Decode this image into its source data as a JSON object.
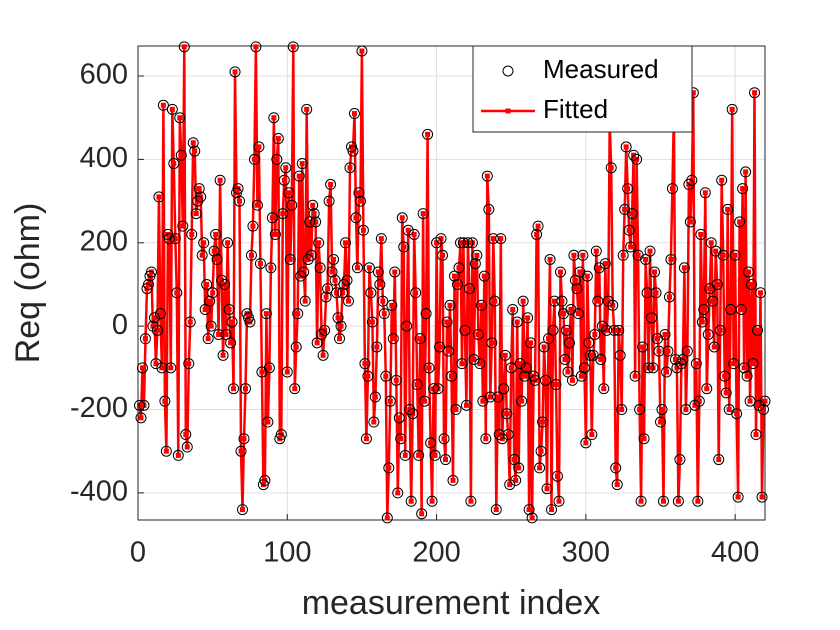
{
  "chart_data": {
    "type": "line",
    "x_label": "measurement index",
    "y_label": "Req (ohm)",
    "xlim": [
      0,
      420
    ],
    "ylim": [
      -465,
      672
    ],
    "xticks": [
      0,
      100,
      200,
      300,
      400
    ],
    "yticks": [
      -400,
      -200,
      0,
      200,
      400,
      600
    ],
    "grid": true,
    "legend": "northeast",
    "x": [
      1,
      2,
      3,
      4,
      5,
      6,
      7,
      8,
      9,
      10,
      11,
      12,
      13,
      14,
      15,
      16,
      17,
      18,
      19,
      20,
      21,
      22,
      23,
      24,
      25,
      26,
      27,
      28,
      29,
      30,
      31,
      32,
      33,
      34,
      35,
      36,
      37,
      38,
      39,
      40,
      41,
      42,
      43,
      44,
      45,
      46,
      47,
      48,
      49,
      50,
      51,
      52,
      53,
      54,
      55,
      56,
      57,
      58,
      59,
      60,
      61,
      62,
      63,
      64,
      65,
      66,
      67,
      68,
      69,
      70,
      71,
      72,
      73,
      74,
      75,
      76,
      77,
      78,
      79,
      80,
      81,
      82,
      83,
      84,
      85,
      86,
      87,
      88,
      89,
      90,
      91,
      92,
      93,
      94,
      95,
      96,
      97,
      98,
      99,
      100,
      101,
      102,
      103,
      104,
      105,
      106,
      107,
      108,
      109,
      110,
      111,
      112,
      113,
      114,
      115,
      116,
      117,
      118,
      119,
      120,
      121,
      122,
      123,
      124,
      125,
      126,
      127,
      128,
      129,
      130,
      131,
      132,
      133,
      134,
      135,
      136,
      137,
      138,
      139,
      140,
      141,
      142,
      143,
      144,
      145,
      146,
      147,
      148,
      149,
      150,
      151,
      152,
      153,
      154,
      155,
      156,
      157,
      158,
      159,
      160,
      161,
      162,
      163,
      164,
      165,
      166,
      167,
      168,
      169,
      170,
      171,
      172,
      173,
      174,
      175,
      176,
      177,
      178,
      179,
      180,
      181,
      182,
      183,
      184,
      185,
      186,
      187,
      188,
      189,
      190,
      191,
      192,
      193,
      194,
      195,
      196,
      197,
      198,
      199,
      200,
      201,
      202,
      203,
      204,
      205,
      206,
      207,
      208,
      209,
      210,
      211,
      212,
      213,
      214,
      215,
      216,
      217,
      218,
      219,
      220,
      221,
      222,
      223,
      224,
      225,
      226,
      227,
      228,
      229,
      230,
      231,
      232,
      233,
      234,
      235,
      236,
      237,
      238,
      239,
      240,
      241,
      242,
      243,
      244,
      245,
      246,
      247,
      248,
      249,
      250,
      251,
      252,
      253,
      254,
      255,
      256,
      257,
      258,
      259,
      260,
      261,
      262,
      263,
      264,
      265,
      266,
      267,
      268,
      269,
      270,
      271,
      272,
      273,
      274,
      275,
      276,
      277,
      278,
      279,
      280,
      281,
      282,
      283,
      284,
      285,
      286,
      287,
      288,
      289,
      290,
      291,
      292,
      293,
      294,
      295,
      296,
      297,
      298,
      299,
      300,
      301,
      302,
      303,
      304,
      305,
      306,
      307,
      308,
      309,
      310,
      311,
      312,
      313,
      314,
      315,
      316,
      317,
      318,
      319,
      320,
      321,
      322,
      323,
      324,
      325,
      326,
      327,
      328,
      329,
      330,
      331,
      332,
      333,
      334,
      335,
      336,
      337,
      338,
      339,
      340,
      341,
      342,
      343,
      344,
      345,
      346,
      347,
      348,
      349,
      350,
      351,
      352,
      353,
      354,
      355,
      356,
      357,
      358,
      359,
      360,
      361,
      362,
      363,
      364,
      365,
      366,
      367,
      368,
      369,
      370,
      371,
      372,
      373,
      374,
      375,
      376,
      377,
      378,
      379,
      380,
      381,
      382,
      383,
      384,
      385,
      386,
      387,
      388,
      389,
      390,
      391,
      392,
      393,
      394,
      395,
      396,
      397,
      398,
      399,
      400,
      401,
      402,
      403,
      404,
      405,
      406,
      407,
      408,
      409,
      410,
      411,
      412,
      413,
      414,
      415,
      416,
      417,
      418,
      419,
      420
    ],
    "series": [
      {
        "name": "Measured",
        "color": "#000000",
        "marker": "circle",
        "line": false,
        "values": [
          -190,
          -220,
          -100,
          -190,
          -30,
          90,
          100,
          120,
          130,
          0,
          20,
          -90,
          -10,
          310,
          30,
          -100,
          530,
          -180,
          -300,
          220,
          210,
          -100,
          520,
          390,
          210,
          80,
          -310,
          500,
          410,
          240,
          670,
          -260,
          -290,
          -90,
          10,
          220,
          440,
          420,
          270,
          300,
          330,
          310,
          170,
          200,
          40,
          100,
          -30,
          60,
          0,
          80,
          180,
          220,
          160,
          -20,
          350,
          110,
          -70,
          100,
          -20,
          200,
          40,
          -40,
          10,
          -150,
          610,
          320,
          330,
          300,
          -300,
          -440,
          -270,
          -150,
          30,
          20,
          10,
          170,
          240,
          400,
          670,
          290,
          430,
          150,
          -110,
          -380,
          -370,
          30,
          -230,
          -100,
          140,
          260,
          500,
          220,
          400,
          450,
          -270,
          -260,
          270,
          350,
          380,
          -110,
          320,
          160,
          290,
          670,
          -150,
          -50,
          30,
          360,
          120,
          390,
          130,
          60,
          520,
          160,
          250,
          170,
          290,
          270,
          250,
          -40,
          200,
          140,
          -20,
          -70,
          -10,
          70,
          90,
          300,
          340,
          130,
          160,
          110,
          80,
          20,
          -30,
          0,
          80,
          100,
          200,
          110,
          60,
          380,
          430,
          420,
          510,
          260,
          140,
          320,
          300,
          660,
          230,
          -90,
          -270,
          -120,
          140,
          80,
          10,
          -230,
          -170,
          -50,
          130,
          100,
          210,
          60,
          30,
          -120,
          -460,
          -340,
          -180,
          50,
          -30,
          130,
          -130,
          -400,
          -220,
          -270,
          260,
          190,
          -310,
          0,
          230,
          -200,
          -420,
          -210,
          220,
          80,
          -140,
          -310,
          -30,
          -450,
          270,
          -180,
          30,
          460,
          -100,
          -280,
          -420,
          -150,
          -310,
          200,
          -150,
          -50,
          210,
          170,
          -270,
          -320,
          10,
          -60,
          50,
          -120,
          -370,
          120,
          -200,
          100,
          140,
          200,
          -90,
          200,
          -10,
          -190,
          200,
          90,
          -420,
          200,
          -80,
          150,
          170,
          -20,
          -90,
          50,
          -180,
          120,
          -270,
          360,
          280,
          -170,
          -40,
          210,
          60,
          -440,
          -170,
          -260,
          210,
          -270,
          -150,
          -70,
          -210,
          -260,
          -380,
          -100,
          40,
          -320,
          -370,
          10,
          -340,
          -90,
          -180,
          60,
          -120,
          -100,
          20,
          -440,
          -40,
          -460,
          -120,
          -130,
          220,
          240,
          -340,
          -300,
          -230,
          -50,
          -130,
          -390,
          -30,
          160,
          -440,
          -10,
          60,
          -140,
          -360,
          -420,
          130,
          60,
          30,
          -80,
          -10,
          -110,
          -40,
          40,
          -130,
          170,
          110,
          90,
          30,
          130,
          -120,
          170,
          -100,
          -280,
          120,
          -40,
          -70,
          -260,
          -70,
          -20,
          180,
          60,
          140,
          -80,
          0,
          -150,
          150,
          -10,
          60,
          490,
          380,
          50,
          -10,
          -340,
          -380,
          -10,
          -70,
          -200,
          170,
          280,
          430,
          330,
          230,
          190,
          270,
          410,
          -120,
          400,
          170,
          -200,
          -420,
          -50,
          -270,
          160,
          80,
          -100,
          180,
          20,
          -100,
          130,
          80,
          -30,
          -60,
          -230,
          -200,
          -420,
          -20,
          -110,
          -60,
          70,
          160,
          330,
          510,
          -80,
          -100,
          -420,
          -320,
          -90,
          -80,
          140,
          -200,
          -60,
          340,
          250,
          350,
          560,
          -190,
          -90,
          -420,
          -180,
          220,
          10,
          40,
          320,
          -150,
          -20,
          90,
          200,
          60,
          -50,
          180,
          100,
          -320,
          -10,
          350,
          170,
          -120,
          -160,
          280,
          -200,
          40,
          520,
          -90,
          170,
          -210,
          -410,
          250,
          40,
          330,
          -100,
          370,
          -120,
          130,
          -180,
          100,
          -90,
          560,
          -260,
          -10,
          -190,
          80,
          -410,
          -200,
          -180
        ]
      },
      {
        "name": "Fitted",
        "color": "#ff0000",
        "marker": "square",
        "line": true,
        "values": [
          -190,
          -220,
          -100,
          -190,
          -30,
          90,
          100,
          120,
          130,
          0,
          20,
          -90,
          -10,
          310,
          30,
          -100,
          530,
          -180,
          -300,
          220,
          210,
          -100,
          520,
          390,
          210,
          80,
          -310,
          500,
          410,
          240,
          670,
          -260,
          -290,
          -90,
          10,
          220,
          440,
          420,
          270,
          300,
          330,
          310,
          170,
          200,
          40,
          100,
          -30,
          60,
          0,
          80,
          180,
          220,
          160,
          -20,
          350,
          110,
          -70,
          100,
          -20,
          200,
          40,
          -40,
          10,
          -150,
          610,
          320,
          330,
          300,
          -300,
          -440,
          -270,
          -150,
          30,
          20,
          10,
          170,
          240,
          400,
          670,
          290,
          430,
          150,
          -110,
          -380,
          -370,
          30,
          -230,
          -100,
          140,
          260,
          500,
          220,
          400,
          450,
          -270,
          -260,
          270,
          350,
          380,
          -110,
          320,
          160,
          290,
          670,
          -150,
          -50,
          30,
          360,
          120,
          390,
          130,
          60,
          520,
          160,
          250,
          170,
          290,
          270,
          250,
          -40,
          200,
          140,
          -20,
          -70,
          -10,
          70,
          90,
          300,
          340,
          130,
          160,
          110,
          80,
          20,
          -30,
          0,
          80,
          100,
          200,
          110,
          60,
          380,
          430,
          420,
          510,
          260,
          140,
          320,
          300,
          660,
          230,
          -90,
          -270,
          -120,
          140,
          80,
          10,
          -230,
          -170,
          -50,
          130,
          100,
          210,
          60,
          30,
          -120,
          -460,
          -340,
          -180,
          50,
          -30,
          130,
          -130,
          -400,
          -220,
          -270,
          260,
          190,
          -310,
          0,
          230,
          -200,
          -420,
          -210,
          220,
          80,
          -140,
          -310,
          -30,
          -450,
          270,
          -180,
          30,
          460,
          -100,
          -280,
          -420,
          -150,
          -310,
          200,
          -150,
          -50,
          210,
          170,
          -270,
          -320,
          10,
          -60,
          50,
          -120,
          -370,
          120,
          -200,
          100,
          140,
          200,
          -90,
          200,
          -10,
          -190,
          200,
          90,
          -420,
          200,
          -80,
          150,
          170,
          -20,
          -90,
          50,
          -180,
          120,
          -270,
          360,
          280,
          -170,
          -40,
          210,
          60,
          -440,
          -170,
          -260,
          210,
          -270,
          -150,
          -70,
          -210,
          -260,
          -380,
          -100,
          40,
          -320,
          -370,
          10,
          -340,
          -90,
          -180,
          60,
          -120,
          -100,
          20,
          -440,
          -40,
          -460,
          -120,
          -130,
          220,
          240,
          -340,
          -300,
          -230,
          -50,
          -130,
          -390,
          -30,
          160,
          -440,
          -10,
          60,
          -140,
          -360,
          -420,
          130,
          60,
          30,
          -80,
          -10,
          -110,
          -40,
          40,
          -130,
          170,
          110,
          90,
          30,
          130,
          -120,
          170,
          -100,
          -280,
          120,
          -40,
          -70,
          -260,
          -70,
          -20,
          180,
          60,
          140,
          -80,
          0,
          -150,
          150,
          -10,
          60,
          490,
          380,
          50,
          -10,
          -340,
          -380,
          -10,
          -70,
          -200,
          170,
          280,
          430,
          330,
          230,
          190,
          270,
          410,
          -120,
          400,
          170,
          -200,
          -420,
          -50,
          -270,
          160,
          80,
          -100,
          180,
          20,
          -100,
          130,
          80,
          -30,
          -60,
          -230,
          -200,
          -420,
          -20,
          -110,
          -60,
          70,
          160,
          330,
          510,
          -80,
          -100,
          -420,
          -320,
          -90,
          -80,
          140,
          -200,
          -60,
          340,
          250,
          350,
          560,
          -190,
          -90,
          -420,
          -180,
          220,
          10,
          40,
          320,
          -150,
          -20,
          90,
          200,
          60,
          -50,
          180,
          100,
          -320,
          -10,
          350,
          170,
          -120,
          -160,
          280,
          -200,
          40,
          520,
          -90,
          170,
          -210,
          -410,
          250,
          40,
          330,
          -100,
          370,
          -120,
          130,
          -180,
          100,
          -90,
          560,
          -260,
          -10,
          -190,
          80,
          -410,
          -200,
          -180
        ]
      }
    ]
  }
}
